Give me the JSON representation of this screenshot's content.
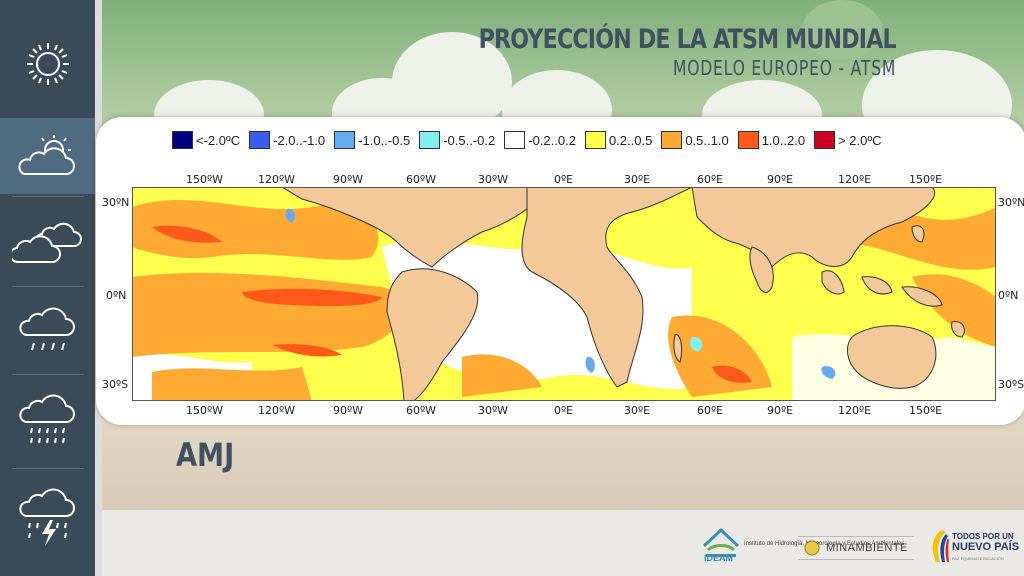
{
  "header": {
    "title": "PROYECCIÓN DE LA ATSM MUNDIAL",
    "subtitle": "MODELO EUROPEO - ATSM"
  },
  "sidebar": {
    "items": [
      {
        "icon": "sun-icon",
        "active": false
      },
      {
        "icon": "sun-cloud-icon",
        "active": true
      },
      {
        "icon": "cloudy-icon",
        "active": false
      },
      {
        "icon": "light-rain-icon",
        "active": false
      },
      {
        "icon": "heavy-rain-icon",
        "active": false
      },
      {
        "icon": "thunderstorm-icon",
        "active": false
      }
    ]
  },
  "legend": [
    {
      "label": "<-2.0ºC",
      "color": "#000080"
    },
    {
      "label": "-2.0..-1.0",
      "color": "#3a5df0"
    },
    {
      "label": "-1.0..-0.5",
      "color": "#66aaf0"
    },
    {
      "label": "-0.5..-0.2",
      "color": "#80f0f0"
    },
    {
      "label": "-0.2..0.2",
      "color": "#ffffff"
    },
    {
      "label": "0.2..0.5",
      "color": "#ffff4d"
    },
    {
      "label": "0.5..1.0",
      "color": "#ffaa33"
    },
    {
      "label": "1.0..2.0",
      "color": "#ff5a1a"
    },
    {
      "label": "> 2.0ºC",
      "color": "#cc0020"
    }
  ],
  "map": {
    "longitude_labels": [
      "150ºW",
      "120ºW",
      "90ºW",
      "60ºW",
      "30ºW",
      "0ºE",
      "30ºE",
      "60ºE",
      "90ºE",
      "120ºE",
      "150ºE"
    ],
    "latitude_labels": [
      "30ºN",
      "0ºN",
      "30ºS"
    ]
  },
  "season": "AMJ",
  "logos": {
    "ideam": {
      "name": "IDEAM",
      "text": "Instituto de Hidrología, Meteorología y Estudios Ambientales"
    },
    "minambiente": {
      "name": "MINAMBIENTE"
    },
    "gobierno": {
      "line1": "TODOS POR UN",
      "line2": "NUEVO PAÍS",
      "line3": "PAZ EQUIDAD EDUCACIÓN"
    }
  },
  "colors": {
    "sidebar_bg": "#3b4a57",
    "sidebar_active": "#4f6b80",
    "title": "#3f5060",
    "land": "#f3c99a"
  }
}
